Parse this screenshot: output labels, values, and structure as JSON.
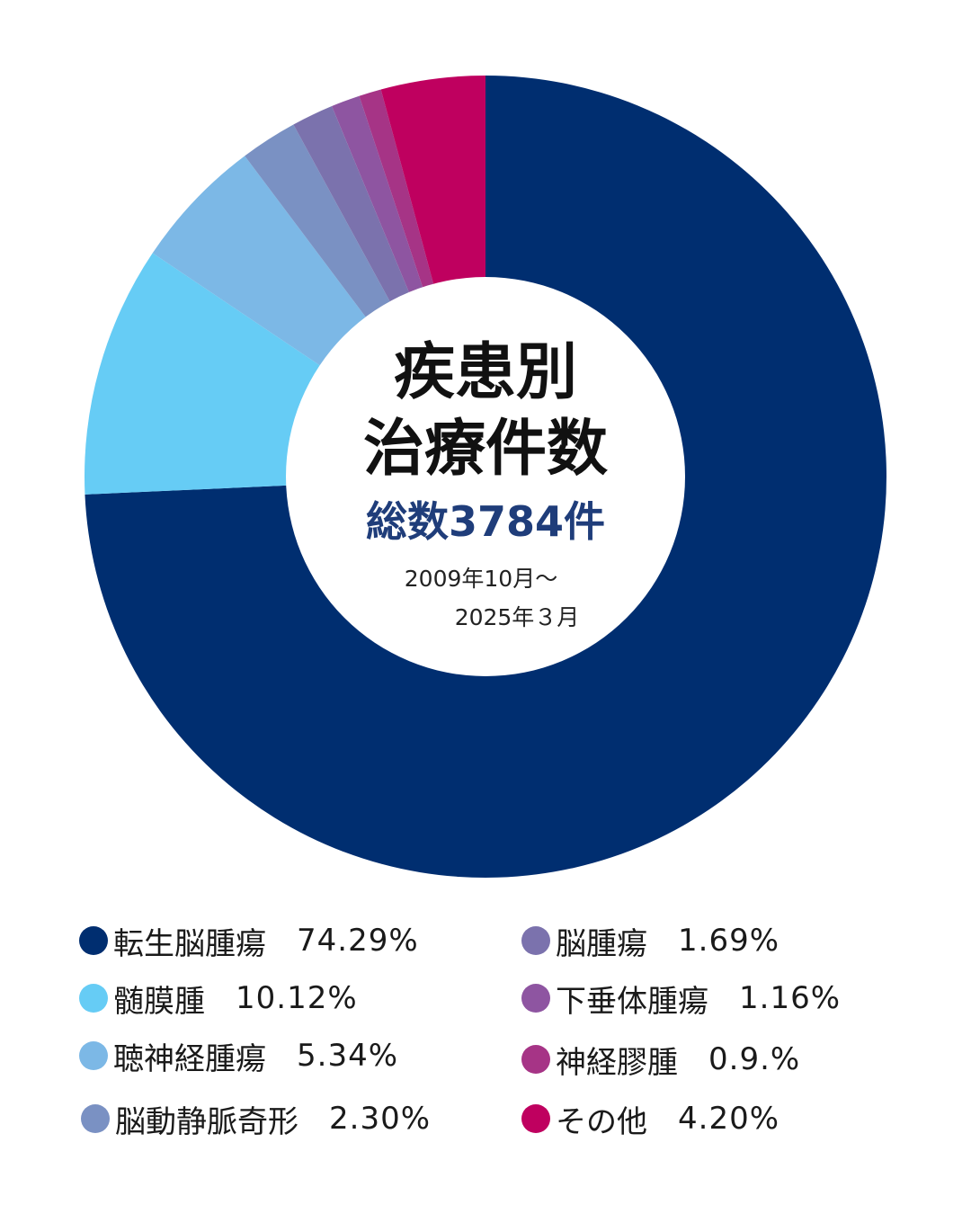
{
  "chart_data": {
    "type": "pie",
    "title": "疾患別\n治療件数",
    "total_label": "総数3784件",
    "period_line1": "2009年10月～",
    "period_line2": "2025年３月",
    "categories": [
      "転生脳腫瘍",
      "髄膜腫",
      "聴神経腫瘍",
      "脳動静脈奇形",
      "脳腫瘍",
      "下垂体腫瘍",
      "神経膠腫",
      "その他"
    ],
    "values": [
      74.29,
      10.12,
      5.34,
      2.3,
      1.69,
      1.16,
      0.9,
      4.2
    ],
    "value_labels": [
      "74.29%",
      "10.12%",
      "5.34%",
      "2.30%",
      "1.69%",
      "1.16%",
      "0.9.%",
      "4.20%"
    ],
    "colors": [
      "#002e70",
      "#66ccf5",
      "#7cb8e6",
      "#7a91c3",
      "#7b72ad",
      "#8e55a1",
      "#a63486",
      "#bf005f"
    ],
    "legend_placement": "bottom"
  },
  "title_lines": [
    "疾患別",
    "治療件数"
  ]
}
